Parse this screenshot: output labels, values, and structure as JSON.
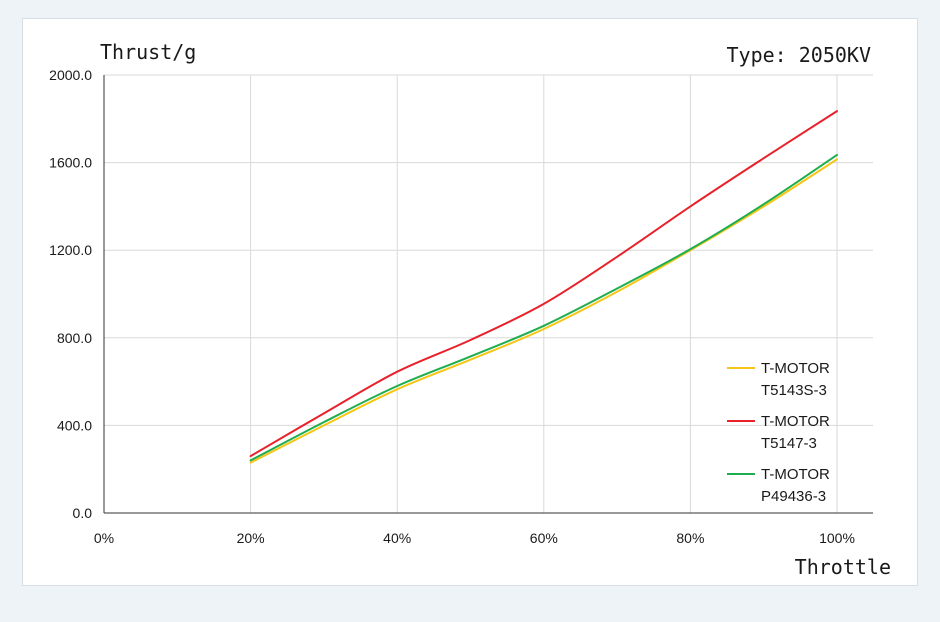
{
  "chart_data": {
    "type": "line",
    "ylabel": "Thrust/g",
    "xlabel": "Throttle",
    "annotation": "Type: 2050KV",
    "x": [
      0.2,
      0.3,
      0.4,
      0.5,
      0.6,
      0.7,
      0.8,
      0.9,
      1.0
    ],
    "x_tick_values": [
      0,
      0.2,
      0.4,
      0.6,
      0.8,
      1.0
    ],
    "x_tick_labels": [
      "0%",
      "20%",
      "40%",
      "60%",
      "80%",
      "100%"
    ],
    "xlim": [
      0,
      1.05
    ],
    "y_tick_values": [
      0,
      400,
      800,
      1200,
      1600,
      2000
    ],
    "y_tick_labels": [
      "0.0",
      "400.0",
      "800.0",
      "1200.0",
      "1600.0",
      "2000.0"
    ],
    "ylim": [
      0,
      2000
    ],
    "grid": true,
    "legend_position": "bottom-right",
    "series": [
      {
        "name_line1": "T-MOTOR",
        "name_line2": "T5143S-3",
        "color": "#f5c518",
        "values": [
          230,
          400,
          565,
          700,
          840,
          1010,
          1200,
          1400,
          1615
        ]
      },
      {
        "name_line1": "T-MOTOR",
        "name_line2": "T5147-3",
        "color": "#e8212a",
        "values": [
          260,
          455,
          645,
          790,
          955,
          1170,
          1400,
          1620,
          1835
        ]
      },
      {
        "name_line1": "T-MOTOR",
        "name_line2": "P49436-3",
        "color": "#1fae4f",
        "values": [
          240,
          415,
          580,
          715,
          855,
          1025,
          1205,
          1410,
          1635
        ]
      }
    ]
  }
}
